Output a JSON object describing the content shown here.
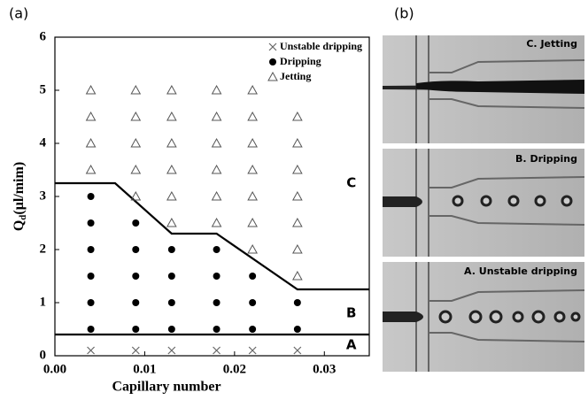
{
  "panel_labels": [
    "(a)",
    "(b)"
  ],
  "chart_data": {
    "type": "scatter",
    "x_label": "Capillary number",
    "y_label": [
      "Q",
      "d",
      "(μl/mim)"
    ],
    "xlim": [
      0,
      0.035
    ],
    "ylim": [
      0,
      6
    ],
    "xticks": [
      {
        "value": 0,
        "label": "0.00"
      },
      0.01,
      0.02,
      0.03
    ],
    "yticks": [
      0,
      1,
      2,
      3,
      4,
      5,
      6
    ],
    "legend": "top-right",
    "series": [
      {
        "name": "Unstable dripping",
        "marker": "x",
        "color": "#666666",
        "x": [
          0.004,
          0.009,
          0.013,
          0.018,
          0.022,
          0.027
        ],
        "values": [
          0.1,
          0.1,
          0.1,
          0.1,
          0.1,
          0.1
        ]
      },
      {
        "name": "Dripping",
        "marker": "circle",
        "color": "#000000",
        "x": [
          0.004,
          0.004,
          0.004,
          0.004,
          0.004,
          0.004,
          0.009,
          0.009,
          0.009,
          0.009,
          0.009,
          0.013,
          0.013,
          0.013,
          0.013,
          0.018,
          0.018,
          0.018,
          0.018,
          0.022,
          0.022,
          0.022,
          0.027,
          0.027
        ],
        "values": [
          0.5,
          1,
          1.5,
          2,
          2.5,
          3,
          0.5,
          1,
          1.5,
          2,
          2.5,
          0.5,
          1,
          1.5,
          2,
          0.5,
          1,
          1.5,
          2,
          0.5,
          1,
          1.5,
          0.5,
          1
        ]
      },
      {
        "name": "Jetting",
        "marker": "triangle",
        "color": "#555555",
        "x": [
          0.004,
          0.004,
          0.004,
          0.004,
          0.009,
          0.009,
          0.009,
          0.009,
          0.009,
          0.013,
          0.013,
          0.013,
          0.013,
          0.013,
          0.013,
          0.018,
          0.018,
          0.018,
          0.018,
          0.018,
          0.018,
          0.022,
          0.022,
          0.022,
          0.022,
          0.022,
          0.022,
          0.022,
          0.027,
          0.027,
          0.027,
          0.027,
          0.027,
          0.027,
          0.027
        ],
        "values": [
          3.5,
          4,
          4.5,
          5,
          3,
          3.5,
          4,
          4.5,
          5,
          2.5,
          3,
          3.5,
          4,
          4.5,
          5,
          2.5,
          3,
          3.5,
          4,
          4.5,
          5,
          2,
          2.5,
          3,
          3.5,
          4,
          4.5,
          5,
          1.5,
          2,
          2.5,
          3,
          3.5,
          4,
          4.5
        ]
      }
    ],
    "boundaries": [
      {
        "x": [
          0,
          0.0067,
          0.013,
          0.018,
          0.027,
          0.035
        ],
        "values": [
          3.25,
          3.25,
          2.3,
          2.3,
          1.25,
          1.25
        ]
      },
      {
        "x": [
          0,
          0.035
        ],
        "values": [
          0.4,
          0.4
        ]
      }
    ],
    "regions": [
      {
        "label": "C",
        "x": 0.033,
        "y": 3.25
      },
      {
        "label": "B",
        "x": 0.033,
        "y": 0.8
      },
      {
        "label": "A",
        "x": 0.033,
        "y": 0.2
      }
    ]
  },
  "images": [
    {
      "caption": "C. Jetting"
    },
    {
      "caption": "B. Dripping"
    },
    {
      "caption": "A. Unstable dripping"
    }
  ]
}
